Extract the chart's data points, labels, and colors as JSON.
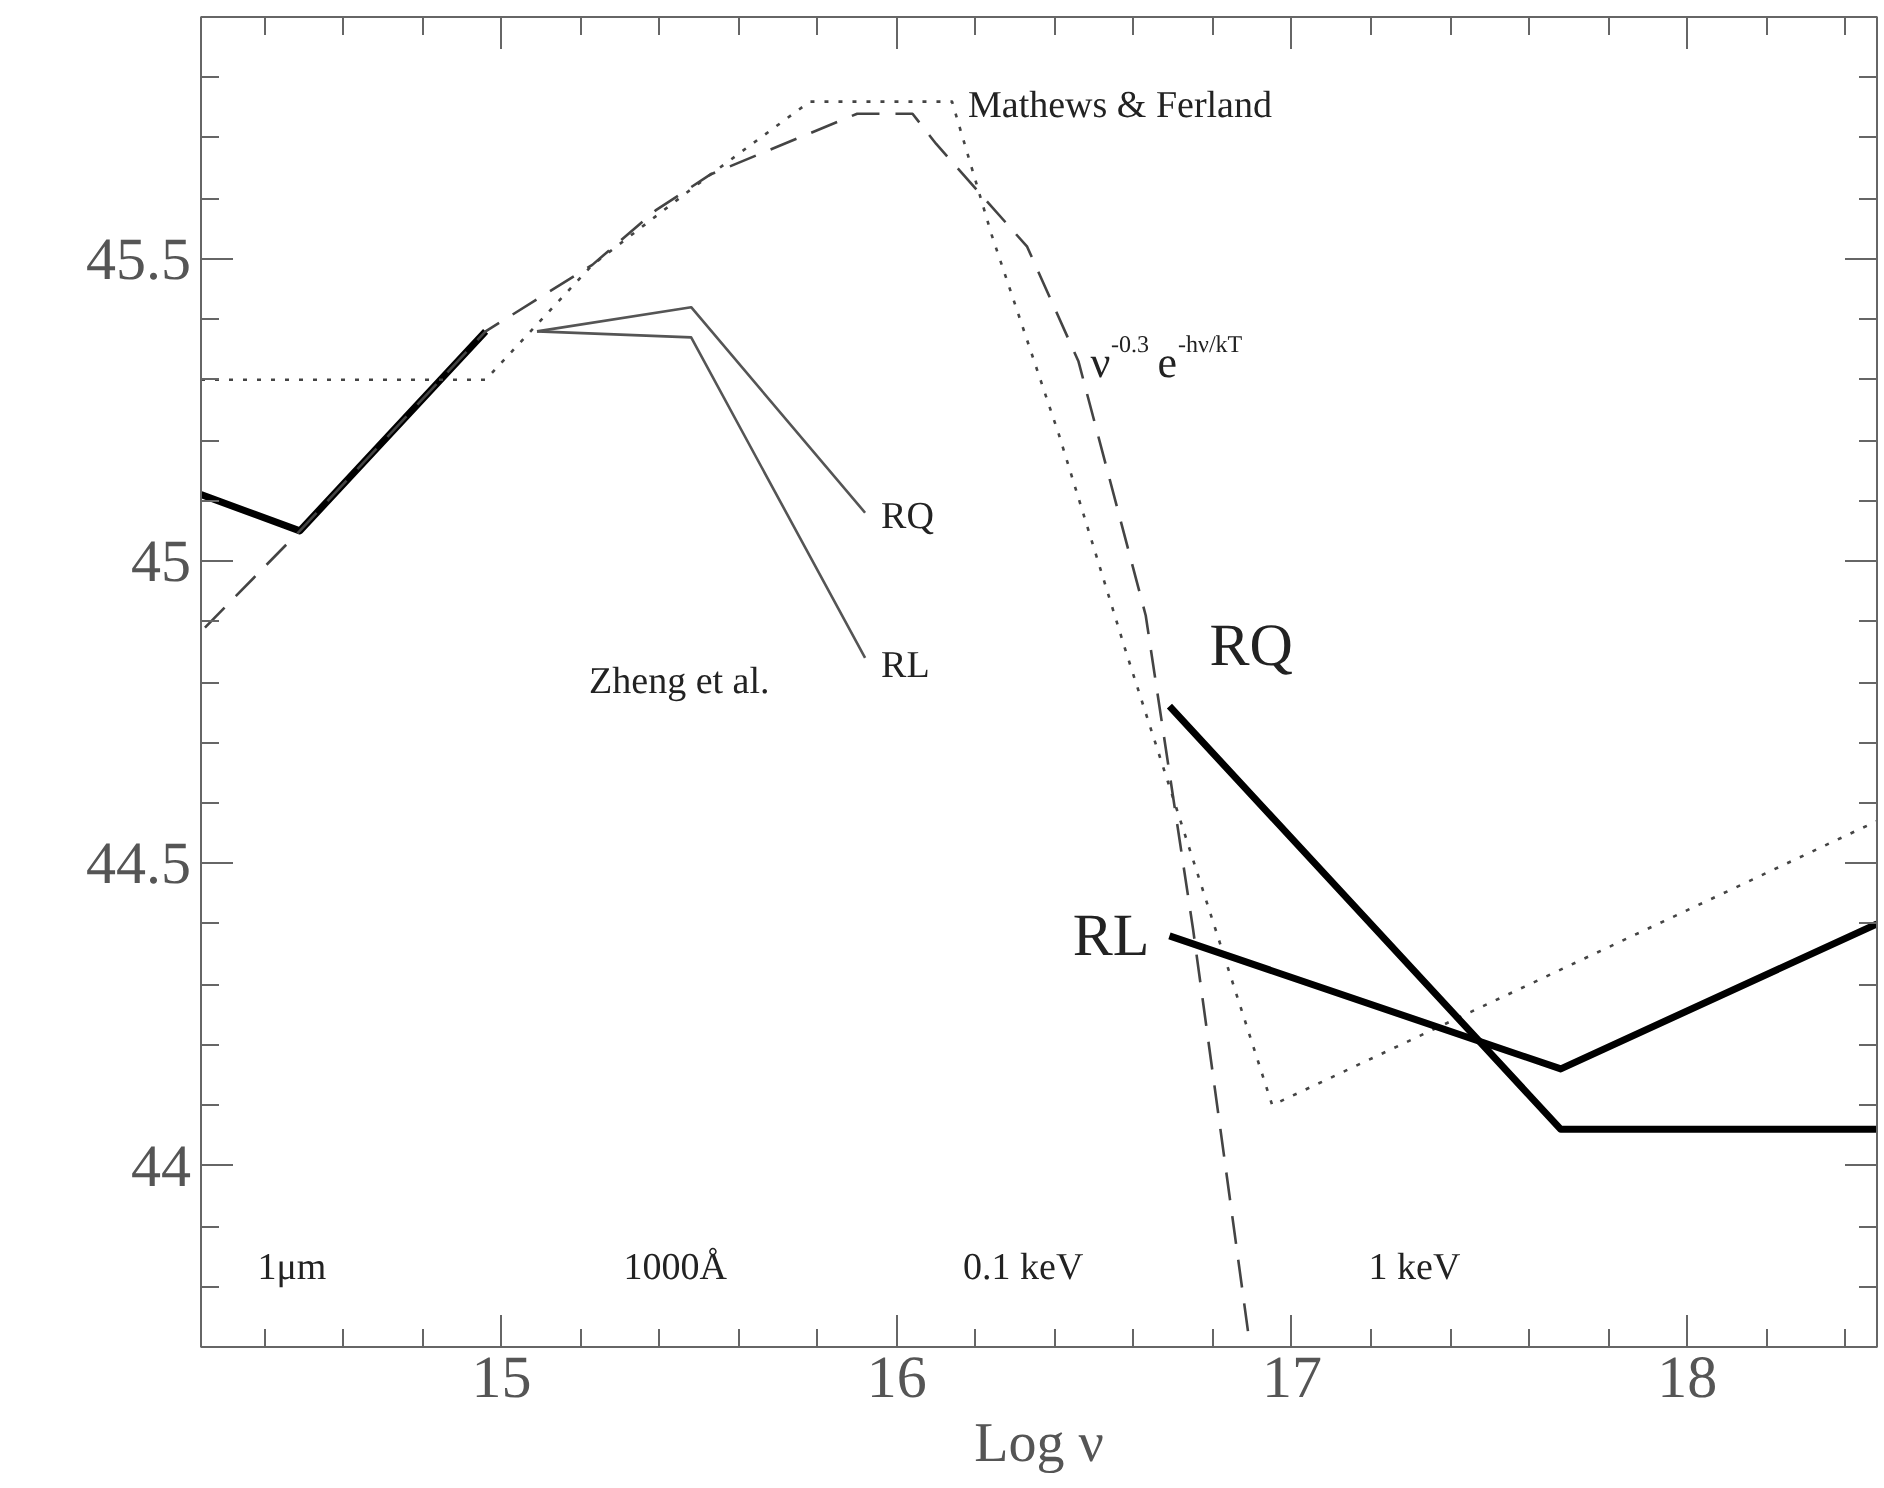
{
  "chart_data": {
    "type": "line",
    "xlabel": "Log ν",
    "xlim": [
      14.24,
      18.48
    ],
    "ylim": [
      43.7,
      45.9
    ],
    "xticks": [
      {
        "value": 14.4,
        "label": null
      },
      {
        "value": 14.6,
        "label": null
      },
      {
        "value": 14.8,
        "label": null
      },
      15,
      {
        "value": 15.2,
        "label": null
      },
      {
        "value": 15.4,
        "label": null
      },
      {
        "value": 15.6,
        "label": null
      },
      {
        "value": 15.8,
        "label": null
      },
      16,
      {
        "value": 16.2,
        "label": null
      },
      {
        "value": 16.4,
        "label": null
      },
      {
        "value": 16.6,
        "label": null
      },
      {
        "value": 16.8,
        "label": null
      },
      17,
      {
        "value": 17.2,
        "label": null
      },
      {
        "value": 17.4,
        "label": null
      },
      {
        "value": 17.6,
        "label": null
      },
      {
        "value": 17.8,
        "label": null
      },
      18,
      {
        "value": 18.2,
        "label": null
      },
      {
        "value": 18.4,
        "label": null
      }
    ],
    "yticks": [
      {
        "value": 43.8,
        "label": null
      },
      {
        "value": 43.9,
        "label": null
      },
      44,
      {
        "value": 44.1,
        "label": null
      },
      {
        "value": 44.2,
        "label": null
      },
      {
        "value": 44.3,
        "label": null
      },
      {
        "value": 44.4,
        "label": null
      },
      44.5,
      {
        "value": 44.6,
        "label": null
      },
      {
        "value": 44.7,
        "label": null
      },
      {
        "value": 44.8,
        "label": null
      },
      {
        "value": 44.9,
        "label": null
      },
      45,
      {
        "value": 45.1,
        "label": null
      },
      {
        "value": 45.2,
        "label": null
      },
      {
        "value": 45.3,
        "label": null
      },
      {
        "value": 45.4,
        "label": null
      },
      45.5,
      {
        "value": 45.6,
        "label": null
      },
      {
        "value": 45.7,
        "label": null
      },
      {
        "value": 45.8,
        "label": null
      }
    ],
    "grid": false,
    "legend": false,
    "marker": "none",
    "series": [
      {
        "color": "#000000",
        "line_style": "solid",
        "x": [
          14.24,
          14.49,
          14.96
        ],
        "values": [
          45.11,
          45.05,
          45.38
        ]
      },
      {
        "name": "Mathews & Ferland",
        "color": "#444444",
        "line_style": "dotted",
        "x": [
          14.24,
          14.96,
          15.23,
          15.53,
          15.78,
          16.14,
          16.24,
          16.41,
          16.58,
          16.95,
          18.48
        ],
        "values": [
          45.3,
          45.3,
          45.49,
          45.64,
          45.76,
          45.76,
          45.54,
          45.21,
          44.85,
          44.1,
          44.57
        ]
      },
      {
        "name": "ν$^{-0.3}$e$^{-hν/kT}$",
        "color": "#444444",
        "line_style": "dashed",
        "x": [
          14.25,
          14.49,
          14.96,
          15.23,
          15.39,
          15.53,
          15.9,
          16.04,
          16.1,
          16.33,
          16.46,
          16.63,
          16.75,
          16.89
        ],
        "values": [
          44.89,
          45.05,
          45.38,
          45.49,
          45.58,
          45.64,
          45.74,
          45.74,
          45.69,
          45.52,
          45.33,
          44.91,
          44.39,
          43.72
        ]
      },
      {
        "name": "RQ",
        "color": "#555555",
        "line_style": "solid",
        "x": [
          15.09,
          15.48,
          15.92
        ],
        "values": [
          45.38,
          45.42,
          45.08
        ]
      },
      {
        "name": "RL",
        "color": "#555555",
        "line_style": "solid",
        "x": [
          15.09,
          15.48,
          15.92
        ],
        "values": [
          45.38,
          45.37,
          44.84
        ]
      },
      {
        "name": "RQ",
        "color": "#000000",
        "line_style": "solid",
        "x": [
          16.69,
          17.68,
          18.48
        ],
        "values": [
          44.76,
          44.06,
          44.06
        ]
      },
      {
        "name": "RL",
        "color": "#000000",
        "line_style": "solid",
        "x": [
          16.69,
          17.68,
          18.48
        ],
        "values": [
          44.38,
          44.16,
          44.4
        ]
      }
    ],
    "annotations": [
      "Zheng et al.",
      "1μm",
      "1000Å",
      "0.1 keV",
      "1 keV"
    ]
  }
}
